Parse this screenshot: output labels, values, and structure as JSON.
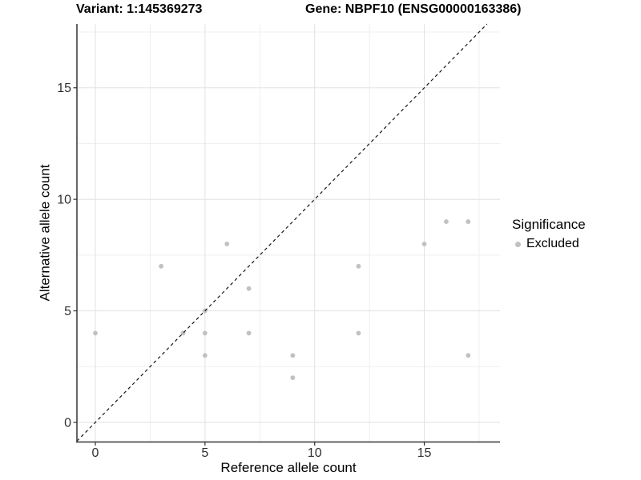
{
  "chart_data": {
    "type": "scatter",
    "titles": {
      "variant": "Variant: 1:145369273",
      "gene": "Gene: NBPF10 (ENSG00000163386)"
    },
    "xlabel": "Reference allele count",
    "ylabel": "Alternative allele count",
    "axes": {
      "x": {
        "min": -0.84,
        "max": 18.45,
        "major_ticks": [
          0,
          5,
          10,
          15
        ],
        "minor_gridlines": [
          2.5,
          7.5,
          12.5,
          17.5
        ]
      },
      "y": {
        "min": -0.88,
        "max": 17.86,
        "major_ticks": [
          0,
          5,
          10,
          15
        ],
        "minor_gridlines": [
          2.5,
          7.5,
          12.5,
          17.5
        ]
      }
    },
    "grid": "on",
    "legend": {
      "title": "Significance",
      "position": "right",
      "entries": [
        {
          "label": "Excluded",
          "color": "#c1c1c1"
        }
      ]
    },
    "series": [
      {
        "name": "Excluded",
        "color": "#c1c1c1",
        "points": [
          [
            0,
            4
          ],
          [
            3,
            7
          ],
          [
            4,
            4
          ],
          [
            5,
            3
          ],
          [
            5,
            4
          ],
          [
            5,
            5
          ],
          [
            6,
            8
          ],
          [
            7,
            4
          ],
          [
            7,
            6
          ],
          [
            9,
            2
          ],
          [
            9,
            3
          ],
          [
            12,
            4
          ],
          [
            12,
            7
          ],
          [
            15,
            8
          ],
          [
            16,
            9
          ],
          [
            17,
            3
          ],
          [
            17,
            9
          ]
        ]
      }
    ],
    "identity_line": {
      "slope": 1,
      "intercept": 0,
      "style": "dashed",
      "color": "#161616"
    }
  },
  "style_colors": {
    "grid_major": "#e3e3e3",
    "grid_minor": "#efefef",
    "axis_line": "#333333",
    "tick_text": "#303030"
  }
}
